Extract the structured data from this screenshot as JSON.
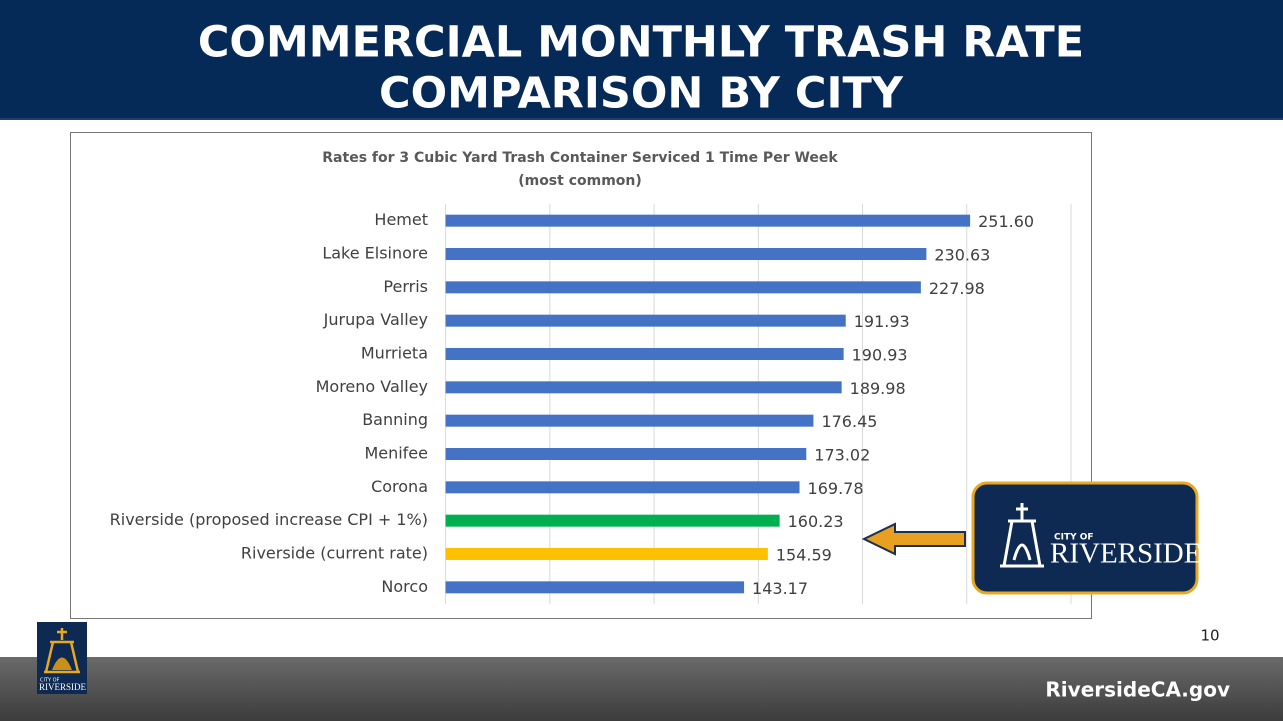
{
  "header": {
    "title_lines": [
      "COMMERCIAL MONTHLY TRASH RATE",
      "COMPARISON BY CITY"
    ]
  },
  "chart_data": {
    "type": "hbar",
    "title_lines": [
      "Rates for 3 Cubic Yard Trash Container Serviced 1 Time Per Week",
      "(most common)"
    ],
    "categories": [
      "Hemet",
      "Lake Elsinore",
      "Perris",
      "Jurupa Valley",
      "Murrieta",
      "Moreno Valley",
      "Banning",
      "Menifee",
      "Corona",
      "Riverside (proposed increase CPI + 1%)",
      "Riverside (current rate)",
      "Norco"
    ],
    "values": [
      251.6,
      230.63,
      227.98,
      191.93,
      190.93,
      189.98,
      176.45,
      173.02,
      169.78,
      160.23,
      154.59,
      143.17
    ],
    "value_labels": [
      "251.60",
      "230.63",
      "227.98",
      "191.93",
      "190.93",
      "189.98",
      "176.45",
      "173.02",
      "169.78",
      "160.23",
      "154.59",
      "143.17"
    ],
    "colors": [
      "#4472c4",
      "#4472c4",
      "#4472c4",
      "#4472c4",
      "#4472c4",
      "#4472c4",
      "#4472c4",
      "#4472c4",
      "#4472c4",
      "#00b050",
      "#ffc000",
      "#4472c4"
    ],
    "xlim": [
      0,
      300
    ],
    "xticks": [
      0,
      50,
      100,
      150,
      200,
      250,
      300
    ],
    "grid": true
  },
  "logo": {
    "small": "CITY OF",
    "name": "RIVERSIDE"
  },
  "footer": {
    "page": "10",
    "site": "RiversideCA.gov"
  }
}
